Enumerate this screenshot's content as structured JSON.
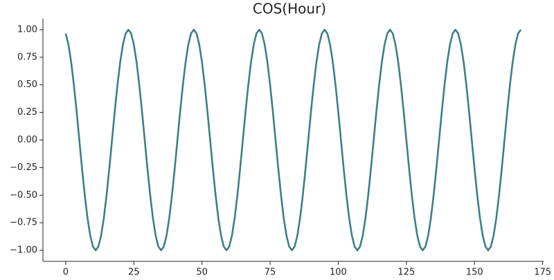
{
  "chart_data": {
    "type": "line",
    "title": "COS(Hour)",
    "x": [
      0,
      1,
      2,
      3,
      4,
      5,
      6,
      7,
      8,
      9,
      10,
      11,
      12,
      13,
      14,
      15,
      16,
      17,
      18,
      19,
      20,
      21,
      22,
      23,
      24,
      25,
      26,
      27,
      28,
      29,
      30,
      31,
      32,
      33,
      34,
      35,
      36,
      37,
      38,
      39,
      40,
      41,
      42,
      43,
      44,
      45,
      46,
      47,
      48,
      49,
      50,
      51,
      52,
      53,
      54,
      55,
      56,
      57,
      58,
      59,
      60,
      61,
      62,
      63,
      64,
      65,
      66,
      67,
      68,
      69,
      70,
      71,
      72,
      73,
      74,
      75,
      76,
      77,
      78,
      79,
      80,
      81,
      82,
      83,
      84,
      85,
      86,
      87,
      88,
      89,
      90,
      91,
      92,
      93,
      94,
      95,
      96,
      97,
      98,
      99,
      100,
      101,
      102,
      103,
      104,
      105,
      106,
      107,
      108,
      109,
      110,
      111,
      112,
      113,
      114,
      115,
      116,
      117,
      118,
      119,
      120,
      121,
      122,
      123,
      124,
      125,
      126,
      127,
      128,
      129,
      130,
      131,
      132,
      133,
      134,
      135,
      136,
      137,
      138,
      139,
      140,
      141,
      142,
      143,
      144,
      145,
      146,
      147,
      148,
      149,
      150,
      151,
      152,
      153,
      154,
      155,
      156,
      157,
      158,
      159,
      160,
      161,
      162,
      163,
      164,
      165,
      166,
      167
    ],
    "series": [
      {
        "color": "#3a8088",
        "values": [
          0.966,
          0.866,
          0.707,
          0.5,
          0.259,
          0,
          -0.259,
          -0.5,
          -0.707,
          -0.866,
          -0.966,
          -1,
          -0.966,
          -0.866,
          -0.707,
          -0.5,
          -0.259,
          0,
          0.259,
          0.5,
          0.707,
          0.866,
          0.966,
          1,
          0.966,
          0.866,
          0.707,
          0.5,
          0.259,
          0,
          -0.259,
          -0.5,
          -0.707,
          -0.866,
          -0.966,
          -1,
          -0.966,
          -0.866,
          -0.707,
          -0.5,
          -0.259,
          0,
          0.259,
          0.5,
          0.707,
          0.866,
          0.966,
          1,
          0.966,
          0.866,
          0.707,
          0.5,
          0.259,
          0,
          -0.259,
          -0.5,
          -0.707,
          -0.866,
          -0.966,
          -1,
          -0.966,
          -0.866,
          -0.707,
          -0.5,
          -0.259,
          0,
          0.259,
          0.5,
          0.707,
          0.866,
          0.966,
          1,
          0.966,
          0.866,
          0.707,
          0.5,
          0.259,
          0,
          -0.259,
          -0.5,
          -0.707,
          -0.866,
          -0.966,
          -1,
          -0.966,
          -0.866,
          -0.707,
          -0.5,
          -0.259,
          0,
          0.259,
          0.5,
          0.707,
          0.866,
          0.966,
          1,
          0.966,
          0.866,
          0.707,
          0.5,
          0.259,
          0,
          -0.259,
          -0.5,
          -0.707,
          -0.866,
          -0.966,
          -1,
          -0.966,
          -0.866,
          -0.707,
          -0.5,
          -0.259,
          0,
          0.259,
          0.5,
          0.707,
          0.866,
          0.966,
          1,
          0.966,
          0.866,
          0.707,
          0.5,
          0.259,
          0,
          -0.259,
          -0.5,
          -0.707,
          -0.866,
          -0.966,
          -1,
          -0.966,
          -0.866,
          -0.707,
          -0.5,
          -0.259,
          0,
          0.259,
          0.5,
          0.707,
          0.866,
          0.966,
          1,
          0.966,
          0.866,
          0.707,
          0.5,
          0.259,
          0,
          -0.259,
          -0.5,
          -0.707,
          -0.866,
          -0.966,
          -1,
          -0.966,
          -0.866,
          -0.707,
          -0.5,
          -0.259,
          0,
          0.259,
          0.5,
          0.707,
          0.866,
          0.966,
          1
        ]
      }
    ],
    "xlim": [
      -8.35,
      175.35
    ],
    "xticks": [
      0,
      25,
      50,
      75,
      100,
      125,
      150,
      175
    ],
    "ylim": [
      -1.1,
      1.1
    ],
    "yticks": [
      {
        "value": -1,
        "label": "−1.00"
      },
      {
        "value": -0.75,
        "label": "−0.75"
      },
      {
        "value": -0.5,
        "label": "−0.50"
      },
      {
        "value": -0.25,
        "label": "−0.25"
      },
      {
        "value": 0,
        "label": "0.00"
      },
      {
        "value": 0.25,
        "label": "0.25"
      },
      {
        "value": 0.5,
        "label": "0.50"
      },
      {
        "value": 0.75,
        "label": "0.75"
      },
      {
        "value": 1,
        "label": "1.00"
      }
    ],
    "grid": false
  }
}
